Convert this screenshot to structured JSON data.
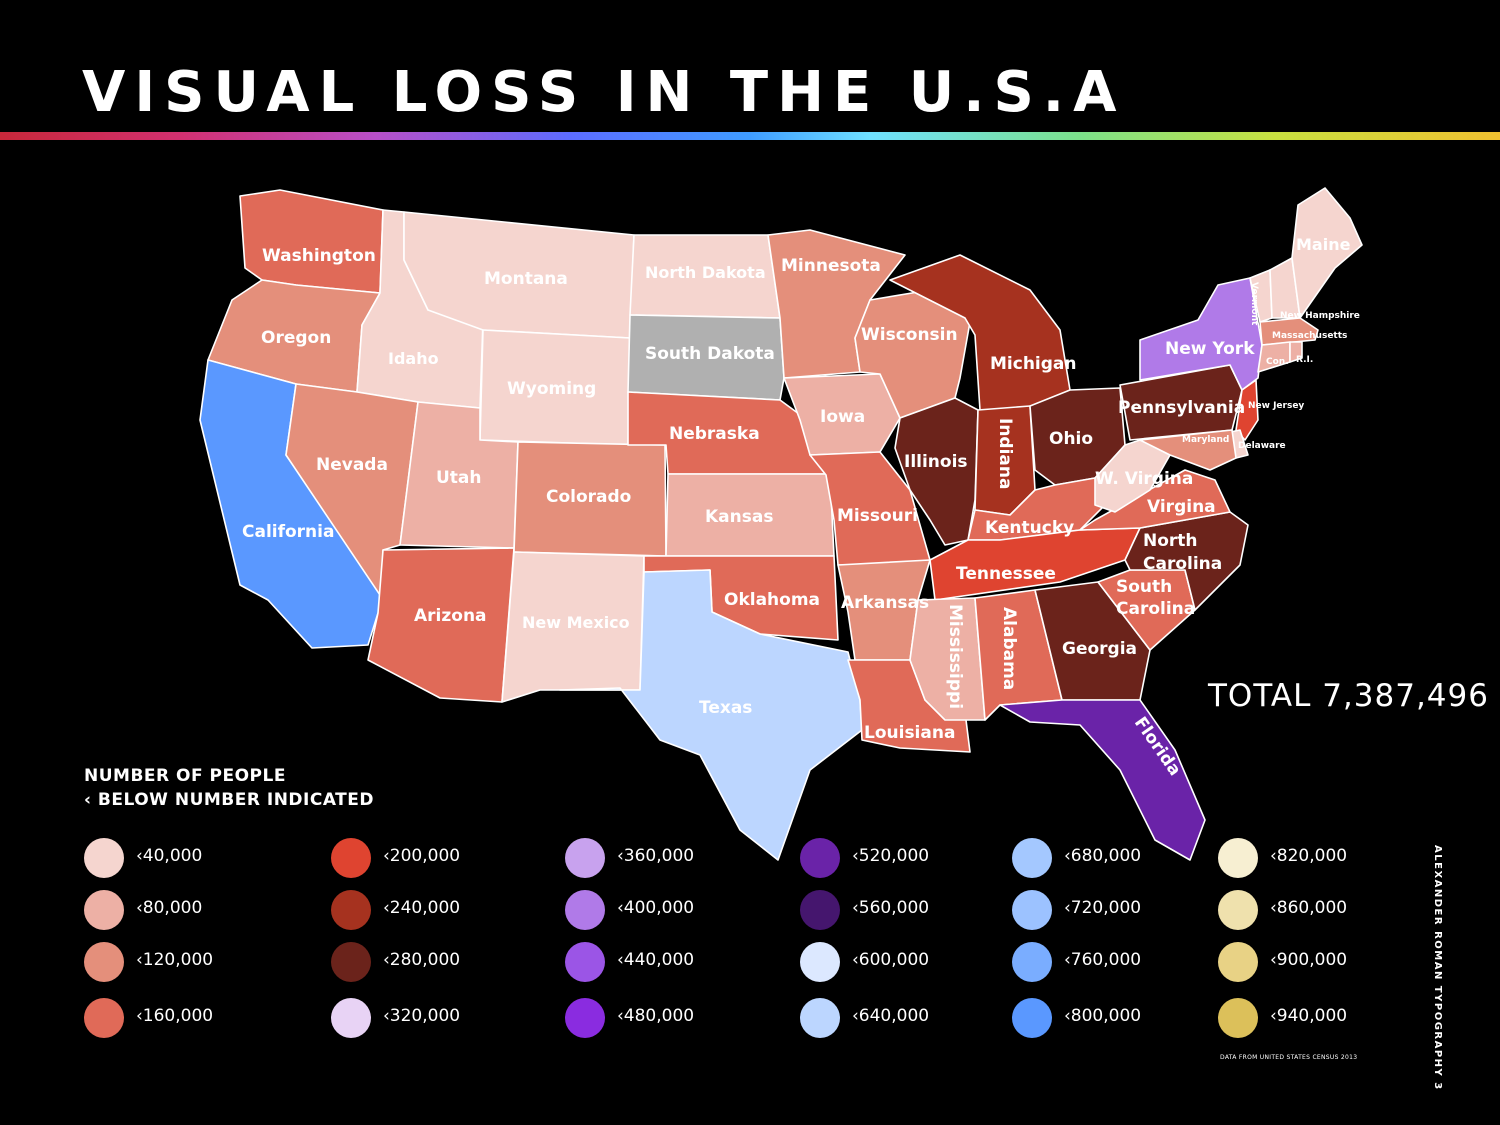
{
  "title": "VISUAL LOSS IN THE U.S.A",
  "total": "TOTAL 7,387,496",
  "legend": {
    "title_line1": "NUMBER OF PEOPLE",
    "title_line2": "‹ BELOW NUMBER INDICATED",
    "items": [
      {
        "label": "‹40,000",
        "color": "#f5d5cf"
      },
      {
        "label": "‹80,000",
        "color": "#edb0a5"
      },
      {
        "label": "‹120,000",
        "color": "#e48f7b"
      },
      {
        "label": "‹160,000",
        "color": "#e06a58"
      },
      {
        "label": "‹200,000",
        "color": "#df4430"
      },
      {
        "label": "‹240,000",
        "color": "#a6321f"
      },
      {
        "label": "‹280,000",
        "color": "#6b231b"
      },
      {
        "label": "‹320,000",
        "color": "#e8d3f5"
      },
      {
        "label": "‹360,000",
        "color": "#c8a2ee"
      },
      {
        "label": "‹400,000",
        "color": "#b07ae8"
      },
      {
        "label": "‹440,000",
        "color": "#9b55e6"
      },
      {
        "label": "‹480,000",
        "color": "#8a2ce0"
      },
      {
        "label": "‹520,000",
        "color": "#6a23a8"
      },
      {
        "label": "‹560,000",
        "color": "#45166e"
      },
      {
        "label": "‹600,000",
        "color": "#dce8ff"
      },
      {
        "label": "‹640,000",
        "color": "#bcd6ff"
      },
      {
        "label": "‹680,000",
        "color": "#a4c8ff"
      },
      {
        "label": "‹720,000",
        "color": "#9cc2ff"
      },
      {
        "label": "‹760,000",
        "color": "#7aadff"
      },
      {
        "label": "‹800,000",
        "color": "#5a98ff"
      },
      {
        "label": "‹820,000",
        "color": "#f7efd2"
      },
      {
        "label": "‹860,000",
        "color": "#efe1ad"
      },
      {
        "label": "‹900,000",
        "color": "#e8d285"
      },
      {
        "label": "‹940,000",
        "color": "#dcc05a"
      }
    ]
  },
  "states": [
    {
      "name": "Washington",
      "color": "#e06a58"
    },
    {
      "name": "Oregon",
      "color": "#e48f7b"
    },
    {
      "name": "California",
      "color": "#5a98ff"
    },
    {
      "name": "Idaho",
      "color": "#f5d5cf"
    },
    {
      "name": "Nevada",
      "color": "#e48f7b"
    },
    {
      "name": "Montana",
      "color": "#f5d5cf"
    },
    {
      "name": "Wyoming",
      "color": "#f5d5cf"
    },
    {
      "name": "Utah",
      "color": "#edb0a5"
    },
    {
      "name": "Arizona",
      "color": "#e06a58"
    },
    {
      "name": "Colorado",
      "color": "#e48f7b"
    },
    {
      "name": "New Mexico",
      "color": "#f5d5cf"
    },
    {
      "name": "North Dakota",
      "color": "#f5d5cf"
    },
    {
      "name": "South Dakota",
      "color": "#b0b0b0"
    },
    {
      "name": "Nebraska",
      "color": "#e06a58"
    },
    {
      "name": "Kansas",
      "color": "#edb0a5"
    },
    {
      "name": "Oklahoma",
      "color": "#e06a58"
    },
    {
      "name": "Texas",
      "color": "#bcd6ff"
    },
    {
      "name": "Minnesota",
      "color": "#e48f7b"
    },
    {
      "name": "Iowa",
      "color": "#edb0a5"
    },
    {
      "name": "Missouri",
      "color": "#e06a58"
    },
    {
      "name": "Arkansas",
      "color": "#e48f7b"
    },
    {
      "name": "Louisiana",
      "color": "#e06a58"
    },
    {
      "name": "Wisconsin",
      "color": "#e48f7b"
    },
    {
      "name": "Illinois",
      "color": "#6b231b"
    },
    {
      "name": "Michigan",
      "color": "#a6321f"
    },
    {
      "name": "Indiana",
      "color": "#a6321f"
    },
    {
      "name": "Ohio",
      "color": "#6b231b"
    },
    {
      "name": "Kentucky",
      "color": "#e06a58"
    },
    {
      "name": "Tennessee",
      "color": "#df4430"
    },
    {
      "name": "Mississippi",
      "color": "#edb0a5"
    },
    {
      "name": "Alabama",
      "color": "#e06a58"
    },
    {
      "name": "Georgia",
      "color": "#6b231b"
    },
    {
      "name": "Florida",
      "color": "#6a23a8"
    },
    {
      "name": "South Carolina",
      "color": "#e06a58"
    },
    {
      "name": "North Carolina",
      "color": "#6b231b"
    },
    {
      "name": "Virgina",
      "color": "#e06a58"
    },
    {
      "name": "W. Virgina",
      "color": "#f5d5cf"
    },
    {
      "name": "Pennsylvania",
      "color": "#6b231b"
    },
    {
      "name": "New York",
      "color": "#b07ae8"
    },
    {
      "name": "Vermont",
      "color": "#f5d5cf"
    },
    {
      "name": "New Hampshire",
      "color": "#f5d5cf"
    },
    {
      "name": "Maine",
      "color": "#f5d5cf"
    },
    {
      "name": "Massachusetts",
      "color": "#e48f7b"
    },
    {
      "name": "Con.",
      "color": "#edb0a5"
    },
    {
      "name": "R.I.",
      "color": "#edb0a5"
    },
    {
      "name": "New Jersey",
      "color": "#df4430"
    },
    {
      "name": "Delaware",
      "color": "#f5d5cf"
    },
    {
      "name": "Maryland",
      "color": "#e48f7b"
    }
  ],
  "credit": "ALEXANDER ROMAN TYPOGRAPHY 3",
  "source": "DATA FROM UNITED STATES CENSUS 2013"
}
